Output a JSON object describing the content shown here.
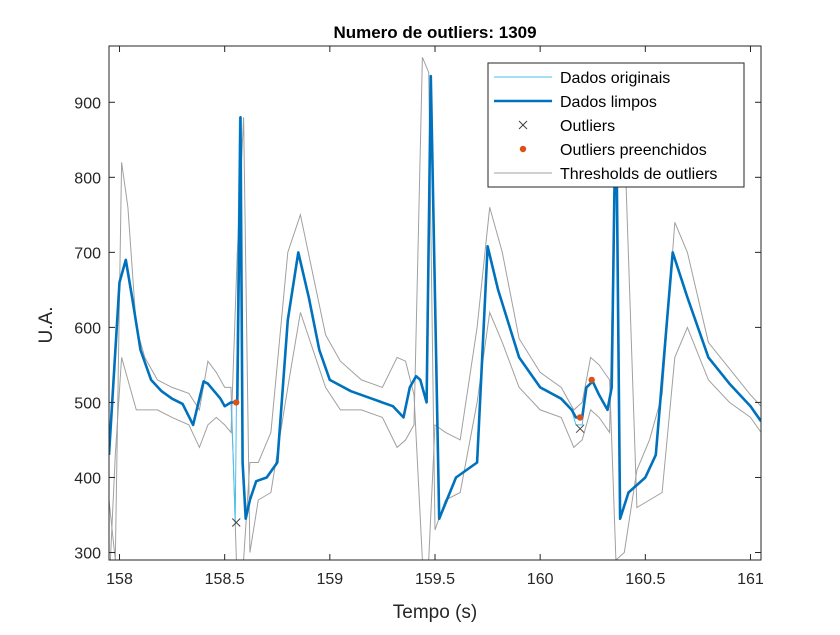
{
  "chart_data": {
    "type": "line",
    "title": "Numero de outliers: 1309",
    "xlabel": "Tempo (s)",
    "ylabel": "U.A.",
    "xlim": [
      157.95,
      161.05
    ],
    "ylim": [
      290,
      975
    ],
    "xticks": [
      158,
      158.5,
      159,
      159.5,
      160,
      160.5,
      161
    ],
    "xtick_labels": [
      "158",
      "158.5",
      "159",
      "159.5",
      "160",
      "160.5",
      "161"
    ],
    "yticks": [
      300,
      400,
      500,
      600,
      700,
      800,
      900
    ],
    "ytick_labels": [
      "300",
      "400",
      "500",
      "600",
      "700",
      "800",
      "900"
    ],
    "grid": false,
    "legend_position": "top-right",
    "colors": {
      "original": "#4DBEEE",
      "clean": "#0072BD",
      "outlier": "#404040",
      "filled": "#D95319",
      "threshold": "#A0A0A0"
    },
    "series": [
      {
        "name": "Dados originais",
        "x": [
          157.95,
          158.0,
          158.03,
          158.06,
          158.1,
          158.15,
          158.2,
          158.25,
          158.3,
          158.35,
          158.38,
          158.4,
          158.42,
          158.45,
          158.48,
          158.5,
          158.53,
          158.54,
          158.55,
          158.57,
          158.585,
          158.6,
          158.62,
          158.65,
          158.7,
          158.75,
          158.8,
          158.85,
          158.9,
          158.95,
          159.0,
          159.1,
          159.2,
          159.3,
          159.35,
          159.38,
          159.41,
          159.43,
          159.46,
          159.48,
          159.52,
          159.6,
          159.7,
          159.75,
          159.8,
          159.9,
          160.0,
          160.1,
          160.15,
          160.17,
          160.2,
          160.22,
          160.25,
          160.28,
          160.3,
          160.32,
          160.34,
          160.36,
          160.38,
          160.42,
          160.5,
          160.55,
          160.63,
          160.7,
          160.8,
          160.9,
          161.0,
          161.05
        ],
        "y": [
          430,
          660,
          690,
          640,
          570,
          530,
          515,
          505,
          498,
          470,
          505,
          528,
          525,
          515,
          505,
          495,
          500,
          430,
          340,
          880,
          420,
          345,
          370,
          395,
          400,
          420,
          610,
          700,
          640,
          570,
          530,
          515,
          505,
          495,
          480,
          520,
          535,
          530,
          500,
          935,
          345,
          400,
          420,
          708,
          650,
          560,
          520,
          505,
          490,
          470,
          470,
          520,
          528,
          510,
          500,
          490,
          520,
          925,
          345,
          380,
          400,
          430,
          700,
          640,
          560,
          525,
          495,
          475
        ]
      },
      {
        "name": "Dados limpos",
        "x": [
          157.95,
          158.0,
          158.03,
          158.06,
          158.1,
          158.15,
          158.2,
          158.25,
          158.3,
          158.35,
          158.38,
          158.4,
          158.42,
          158.45,
          158.48,
          158.5,
          158.53,
          158.56,
          158.575,
          158.585,
          158.6,
          158.62,
          158.65,
          158.7,
          158.75,
          158.8,
          158.85,
          158.9,
          158.95,
          159.0,
          159.1,
          159.2,
          159.3,
          159.35,
          159.38,
          159.41,
          159.43,
          159.46,
          159.48,
          159.52,
          159.6,
          159.7,
          159.75,
          159.8,
          159.9,
          160.0,
          160.1,
          160.15,
          160.17,
          160.2,
          160.22,
          160.25,
          160.28,
          160.3,
          160.32,
          160.34,
          160.36,
          160.38,
          160.42,
          160.5,
          160.55,
          160.63,
          160.7,
          160.8,
          160.9,
          161.0,
          161.05
        ],
        "y": [
          430,
          660,
          690,
          640,
          570,
          530,
          515,
          505,
          498,
          470,
          505,
          528,
          525,
          515,
          505,
          495,
          500,
          500,
          880,
          420,
          345,
          370,
          395,
          400,
          420,
          610,
          700,
          640,
          570,
          530,
          515,
          505,
          495,
          480,
          520,
          535,
          530,
          500,
          935,
          345,
          400,
          420,
          708,
          650,
          560,
          520,
          505,
          490,
          480,
          480,
          520,
          528,
          510,
          500,
          490,
          520,
          925,
          345,
          380,
          400,
          430,
          700,
          640,
          560,
          525,
          495,
          475
        ]
      },
      {
        "name": "Outliers",
        "x": [
          158.555,
          160.19
        ],
        "y": [
          340,
          465
        ]
      },
      {
        "name": "Outliers preenchidos",
        "x": [
          158.555,
          160.19,
          160.245
        ],
        "y": [
          500,
          480,
          530
        ]
      },
      {
        "name": "Thresholds de outliers",
        "x": [
          157.95,
          157.98,
          158.01,
          158.04,
          158.08,
          158.12,
          158.18,
          158.25,
          158.33,
          158.38,
          158.42,
          158.46,
          158.5,
          158.53,
          158.56,
          158.59,
          158.62,
          158.66,
          158.72,
          158.8,
          158.86,
          158.92,
          158.98,
          159.05,
          159.15,
          159.25,
          159.32,
          159.36,
          159.4,
          159.44,
          159.47,
          159.5,
          159.55,
          159.62,
          159.7,
          159.76,
          159.82,
          159.9,
          160.0,
          160.1,
          160.16,
          160.2,
          160.24,
          160.28,
          160.33,
          160.36,
          160.4,
          160.46,
          160.52,
          160.58,
          160.64,
          160.7,
          160.8,
          160.9,
          161.0,
          161.05
        ],
        "y": [
          370,
          290,
          820,
          760,
          600,
          560,
          530,
          520,
          512,
          490,
          555,
          540,
          520,
          520,
          250,
          290,
          420,
          420,
          460,
          700,
          750,
          670,
          590,
          555,
          530,
          520,
          560,
          555,
          510,
          290,
          290,
          470,
          460,
          450,
          600,
          760,
          700,
          585,
          540,
          520,
          490,
          500,
          560,
          550,
          530,
          290,
          300,
          410,
          450,
          510,
          740,
          700,
          580,
          545,
          510,
          495
        ],
        "y2": [
          250,
          430,
          560,
          530,
          490,
          490,
          490,
          480,
          470,
          440,
          470,
          480,
          470,
          460,
          700,
          880,
          300,
          370,
          380,
          520,
          620,
          570,
          520,
          490,
          490,
          480,
          440,
          450,
          470,
          960,
          940,
          330,
          370,
          380,
          500,
          620,
          580,
          520,
          490,
          480,
          440,
          450,
          490,
          480,
          460,
          890,
          860,
          360,
          370,
          380,
          560,
          600,
          530,
          500,
          480,
          460
        ]
      }
    ]
  }
}
